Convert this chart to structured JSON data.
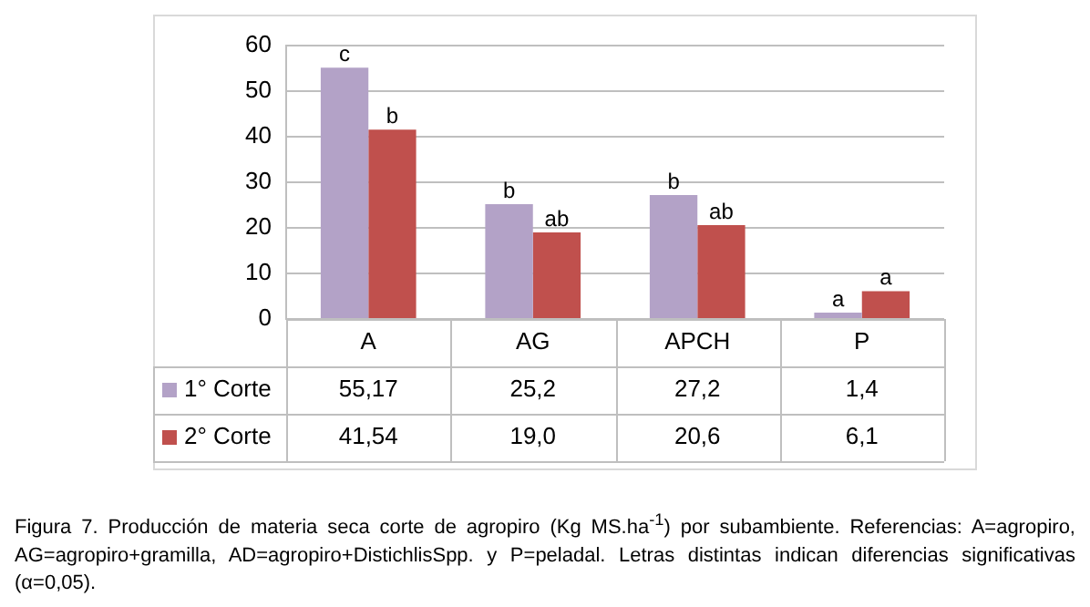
{
  "chart_data": {
    "type": "bar",
    "categories": [
      "A",
      "AG",
      "APCH",
      "P"
    ],
    "series": [
      {
        "name": "1° Corte",
        "color": "#b3a2c7",
        "values": [
          55.17,
          25.2,
          27.2,
          1.4
        ],
        "value_labels": [
          "55,17",
          "25,2",
          "27,2",
          "1,4"
        ]
      },
      {
        "name": "2° Corte",
        "color": "#c0504d",
        "values": [
          41.54,
          19.0,
          20.6,
          6.1
        ],
        "value_labels": [
          "41,54",
          "19,0",
          "20,6",
          "6,1"
        ]
      }
    ],
    "ylim": [
      0,
      60
    ],
    "yticks": [
      0,
      10,
      20,
      30,
      40,
      50,
      60
    ],
    "grid": "y",
    "legend": "bottom left",
    "annotations": [
      {
        "text": "c",
        "x": "A",
        "y": 55.17
      },
      {
        "text": "b",
        "x": "A",
        "y": 41.54
      },
      {
        "text": "b",
        "x": "AG",
        "y": 25.2
      },
      {
        "text": "ab",
        "x": "AG",
        "y": 19.0
      },
      {
        "text": "b",
        "x": "APCH",
        "y": 27.2
      },
      {
        "text": "ab",
        "x": "APCH",
        "y": 20.6
      },
      {
        "text": "a",
        "x": "P",
        "y": 1.4
      },
      {
        "text": "a",
        "x": "P",
        "y": 6.1
      },
      "Figura 7. Producción de materia seca corte de agropiro (Kg MS.ha$^{-1}$) por subambiente. Referencias: A=agropiro, AG=agropiro+gramilla, AD=agropiro+DistichlisSpp. y P=peladal. Letras distintas indican diferencias significativas (α=0,05)."
    ]
  }
}
